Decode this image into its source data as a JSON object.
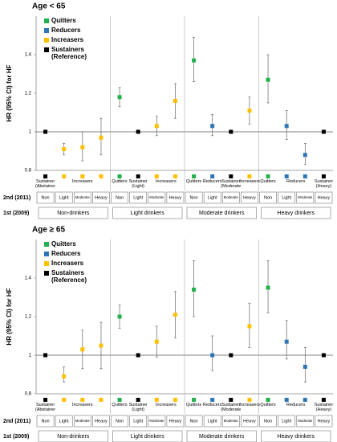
{
  "chart_data": [
    {
      "type": "scatter",
      "title": "Age < 65",
      "y_label": "HR (95% CI) for HF",
      "ylim": [
        0.8,
        1.6
      ],
      "yticks": [
        0.8,
        1,
        1.2,
        1.4
      ],
      "reference_line": 1,
      "groups": [
        "Non-drinkers",
        "Light drinkers",
        "Moderate drinkers",
        "Heavy drinkers"
      ],
      "categories": [
        "Non",
        "Light",
        "Moderate",
        "Heavy"
      ],
      "row_labels": [
        "2nd (2011)",
        "1st (2009)"
      ],
      "transition_labels": [
        [
          "Sustainer (Abstainer)",
          "Increasers"
        ],
        [
          "Quitters",
          "Sustainer (Light)",
          "Increasers"
        ],
        [
          "Quitters",
          "Reducers",
          "Sustainer (Moderate)",
          "Increasers"
        ],
        [
          "Quitters",
          "Reducers",
          "Sustainer (Heavy)"
        ]
      ],
      "series": [
        {
          "name": "Quitters",
          "color": "#22b14c",
          "values": [
            null,
            null,
            null,
            null,
            1.18,
            null,
            null,
            null,
            1.37,
            null,
            null,
            null,
            1.27,
            null,
            null,
            null
          ],
          "lower": [
            null,
            null,
            null,
            null,
            1.13,
            null,
            null,
            null,
            1.26,
            null,
            null,
            null,
            1.15,
            null,
            null,
            null
          ],
          "upper": [
            null,
            null,
            null,
            null,
            1.23,
            null,
            null,
            null,
            1.49,
            null,
            null,
            null,
            1.4,
            null,
            null,
            null
          ]
        },
        {
          "name": "Reducers",
          "color": "#2e75b6",
          "values": [
            null,
            null,
            null,
            null,
            null,
            null,
            null,
            null,
            null,
            1.03,
            null,
            null,
            null,
            1.03,
            0.88,
            null
          ],
          "lower": [
            null,
            null,
            null,
            null,
            null,
            null,
            null,
            null,
            null,
            0.98,
            null,
            null,
            null,
            0.96,
            0.83,
            null
          ],
          "upper": [
            null,
            null,
            null,
            null,
            null,
            null,
            null,
            null,
            null,
            1.09,
            null,
            null,
            null,
            1.11,
            0.94,
            null
          ]
        },
        {
          "name": "Increasers",
          "color": "#ffc000",
          "values": [
            null,
            0.91,
            0.92,
            0.97,
            null,
            null,
            1.03,
            1.16,
            null,
            null,
            null,
            1.11,
            null,
            null,
            null,
            null
          ],
          "lower": [
            null,
            0.88,
            0.85,
            0.88,
            null,
            null,
            0.98,
            1.07,
            null,
            null,
            null,
            1.04,
            null,
            null,
            null,
            null
          ],
          "upper": [
            null,
            0.94,
            1.0,
            1.07,
            null,
            null,
            1.08,
            1.25,
            null,
            null,
            null,
            1.18,
            null,
            null,
            null,
            null
          ]
        },
        {
          "name": "Sustainers (Reference)",
          "color": "#000000",
          "values": [
            1,
            null,
            null,
            null,
            null,
            1,
            null,
            null,
            null,
            null,
            1,
            null,
            null,
            null,
            null,
            1
          ]
        }
      ]
    },
    {
      "type": "scatter",
      "title": "Age ≥ 65",
      "y_label": "HR (95% CI) for HF",
      "ylim": [
        0.8,
        1.6
      ],
      "yticks": [
        0.8,
        1,
        1.2,
        1.4
      ],
      "reference_line": 1,
      "groups": [
        "Non-drinkers",
        "Light drinkers",
        "Moderate drinkers",
        "Heavy drinkers"
      ],
      "categories": [
        "Non",
        "Light",
        "Moderate",
        "Heavy"
      ],
      "row_labels": [
        "2nd (2011)",
        "1st (2009)"
      ],
      "transition_labels": [
        [
          "Sustainer (Abstainer)",
          "Increasers"
        ],
        [
          "Quitters",
          "Sustainer (Light)",
          "Increasers"
        ],
        [
          "Quitters",
          "Reducers",
          "Sustainer (Moderate)",
          "Increasers"
        ],
        [
          "Quitters",
          "Reducers",
          "Sustainer (Heavy)"
        ]
      ],
      "series": [
        {
          "name": "Quitters",
          "color": "#22b14c",
          "values": [
            null,
            null,
            null,
            null,
            1.2,
            null,
            null,
            null,
            1.34,
            null,
            null,
            null,
            1.35,
            null,
            null,
            null
          ],
          "lower": [
            null,
            null,
            null,
            null,
            1.14,
            null,
            null,
            null,
            1.2,
            null,
            null,
            null,
            1.22,
            null,
            null,
            null
          ],
          "upper": [
            null,
            null,
            null,
            null,
            1.26,
            null,
            null,
            null,
            1.49,
            null,
            null,
            null,
            1.49,
            null,
            null,
            null
          ]
        },
        {
          "name": "Reducers",
          "color": "#2e75b6",
          "values": [
            null,
            null,
            null,
            null,
            null,
            null,
            null,
            null,
            null,
            1.0,
            null,
            null,
            null,
            1.07,
            0.94,
            null
          ],
          "lower": [
            null,
            null,
            null,
            null,
            null,
            null,
            null,
            null,
            null,
            0.92,
            null,
            null,
            null,
            0.98,
            0.86,
            null
          ],
          "upper": [
            null,
            null,
            null,
            null,
            null,
            null,
            null,
            null,
            null,
            1.1,
            null,
            null,
            null,
            1.18,
            1.04,
            null
          ]
        },
        {
          "name": "Increasers",
          "color": "#ffc000",
          "values": [
            null,
            0.89,
            1.03,
            1.05,
            null,
            null,
            1.07,
            1.21,
            null,
            null,
            null,
            1.15,
            null,
            null,
            null,
            null
          ],
          "lower": [
            null,
            0.86,
            0.93,
            0.93,
            null,
            null,
            0.99,
            1.09,
            null,
            null,
            null,
            1.04,
            null,
            null,
            null,
            null
          ],
          "upper": [
            null,
            0.94,
            1.13,
            1.17,
            null,
            null,
            1.15,
            1.33,
            null,
            null,
            null,
            1.27,
            null,
            null,
            null,
            null
          ]
        },
        {
          "name": "Sustainers (Reference)",
          "color": "#000000",
          "values": [
            1,
            null,
            null,
            null,
            null,
            1,
            null,
            null,
            null,
            null,
            1,
            null,
            null,
            null,
            null,
            1
          ]
        }
      ]
    }
  ]
}
